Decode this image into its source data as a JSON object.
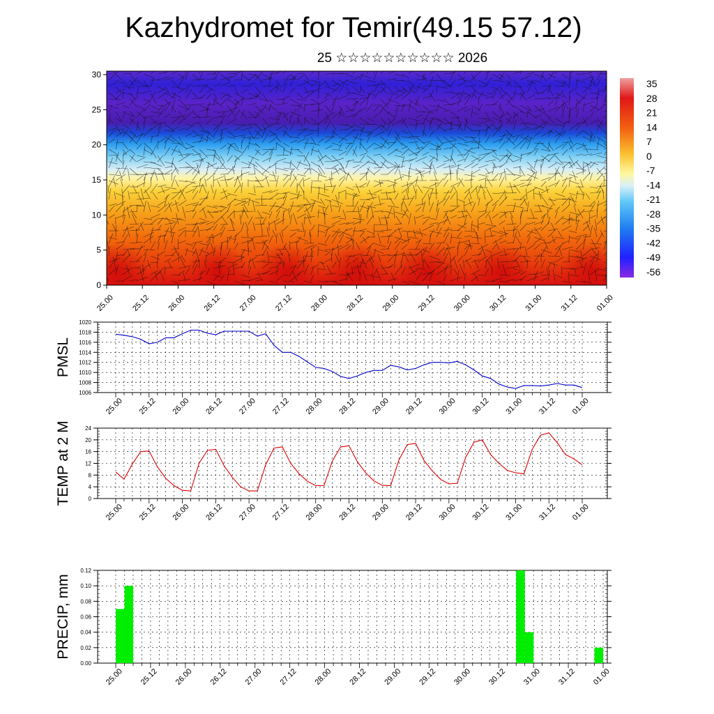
{
  "title": "Kazhydromet for Temir(49.15 57.12)",
  "subtitle": "25 ☆☆☆☆☆☆☆☆☆☆ 2026",
  "colors": {
    "pmsl_line": "#0000cc",
    "temp_line": "#dd0000",
    "precip_bar": "#00ee00",
    "grid": "#000000"
  },
  "time_ticks": [
    "25.00",
    "25.12",
    "26.00",
    "26.12",
    "27.00",
    "27.12",
    "28.00",
    "28.12",
    "29.00",
    "29.12",
    "30.00",
    "30.12",
    "31.00",
    "31.12",
    "01.00"
  ],
  "chart_data": [
    {
      "type": "heatmap",
      "name": "cross-section",
      "x_ticks": [
        "25.00",
        "25.12",
        "26.00",
        "26.12",
        "27.00",
        "27.12",
        "28.00",
        "28.12",
        "29.00",
        "29.12",
        "30.00",
        "30.12",
        "31.00",
        "31.12",
        "01.00"
      ],
      "y_ticks": [
        "0",
        "5",
        "10",
        "15",
        "20",
        "25",
        "30"
      ],
      "ylim": [
        0,
        30.5
      ],
      "colorbar_labels": [
        "35",
        "28",
        "21",
        "14",
        "7",
        "0",
        "-7",
        "-14",
        "-21",
        "-28",
        "-35",
        "-42",
        "-49",
        "-56"
      ],
      "colorbar_range": [
        -63,
        42
      ]
    },
    {
      "type": "line",
      "ylabel": "PMSL",
      "ylim": [
        1006,
        1020
      ],
      "y_ticks": [
        "1006",
        "1008",
        "1010",
        "1012",
        "1014",
        "1016",
        "1018",
        "1020"
      ],
      "x_ticks": [
        "25.00",
        "25.12",
        "26.00",
        "26.12",
        "27.00",
        "27.12",
        "28.00",
        "28.12",
        "29.00",
        "29.12",
        "30.00",
        "30.12",
        "31.00",
        "31.12",
        "01.00"
      ],
      "x_hours": [
        0,
        3,
        6,
        9,
        12,
        15,
        18,
        21,
        24,
        27,
        30,
        33,
        36,
        39,
        42,
        45,
        48,
        51,
        54,
        57,
        60,
        63,
        66,
        69,
        72,
        75,
        78,
        81,
        84,
        87,
        90,
        93,
        96,
        99,
        102,
        105,
        108,
        111,
        114,
        117,
        120,
        123,
        126,
        129,
        132,
        135,
        138,
        141,
        144,
        147,
        150,
        153,
        156,
        159,
        162,
        165,
        168
      ],
      "values": [
        1017.6,
        1017.4,
        1017.1,
        1016.6,
        1015.7,
        1016.0,
        1016.9,
        1016.9,
        1017.7,
        1018.4,
        1018.4,
        1017.8,
        1017.5,
        1018.2,
        1018.2,
        1018.2,
        1018.2,
        1017.2,
        1017.7,
        1015.4,
        1014.0,
        1014.0,
        1013.2,
        1012.1,
        1011.0,
        1010.8,
        1010.2,
        1009.2,
        1008.8,
        1009.3,
        1010.0,
        1010.4,
        1010.4,
        1011.4,
        1011.1,
        1010.5,
        1010.8,
        1011.5,
        1012.0,
        1012.0,
        1011.9,
        1012.2,
        1011.5,
        1010.5,
        1009.3,
        1008.8,
        1007.7,
        1007.1,
        1006.8,
        1007.4,
        1007.4,
        1007.3,
        1007.5,
        1007.8,
        1007.5,
        1007.5,
        1007.0
      ]
    },
    {
      "type": "line",
      "ylabel": "TEMP at 2 M",
      "ylim": [
        0,
        24
      ],
      "y_ticks": [
        "0",
        "4",
        "8",
        "12",
        "16",
        "20",
        "24"
      ],
      "x_ticks": [
        "25.00",
        "25.12",
        "26.00",
        "26.12",
        "27.00",
        "27.12",
        "28.00",
        "28.12",
        "29.00",
        "29.12",
        "30.00",
        "30.12",
        "31.00",
        "31.12",
        "01.00"
      ],
      "x_hours": [
        0,
        3,
        6,
        9,
        12,
        15,
        18,
        21,
        24,
        27,
        30,
        33,
        36,
        39,
        42,
        45,
        48,
        51,
        54,
        57,
        60,
        63,
        66,
        69,
        72,
        75,
        78,
        81,
        84,
        87,
        90,
        93,
        96,
        99,
        102,
        105,
        108,
        111,
        114,
        117,
        120,
        123,
        126,
        129,
        132,
        135,
        138,
        141,
        144,
        147,
        150,
        153,
        156,
        159,
        162,
        165,
        168
      ],
      "values": [
        9.0,
        6.6,
        11.8,
        16.0,
        16.2,
        10.8,
        6.9,
        4.4,
        2.8,
        2.6,
        12.0,
        16.4,
        16.8,
        11.2,
        7.2,
        4.0,
        2.6,
        2.6,
        11.5,
        17.2,
        17.6,
        12.0,
        8.5,
        5.9,
        4.4,
        4.4,
        12.8,
        17.6,
        18.0,
        12.6,
        8.8,
        6.0,
        4.5,
        4.4,
        13.2,
        18.4,
        18.8,
        13.0,
        9.4,
        6.5,
        5.0,
        5.2,
        14.0,
        19.2,
        20.0,
        15.0,
        12.0,
        9.6,
        8.8,
        8.4,
        16.8,
        21.6,
        22.4,
        19.0,
        15.0,
        13.5,
        11.5
      ]
    },
    {
      "type": "bar",
      "ylabel": "PRECIP, mm",
      "ylim": [
        0,
        0.12
      ],
      "y_ticks": [
        "0.00",
        "0.02",
        "0.04",
        "0.06",
        "0.08",
        "0.10",
        "0.12"
      ],
      "x_ticks": [
        "25.00",
        "25.12",
        "26.00",
        "26.12",
        "27.00",
        "27.12",
        "28.00",
        "28.12",
        "29.00",
        "29.12",
        "30.00",
        "30.12",
        "31.00",
        "31.12",
        "01.00"
      ],
      "bars": [
        {
          "x_hours": 0,
          "value": 0.07
        },
        {
          "x_hours": 3,
          "value": 0.1
        },
        {
          "x_hours": 138,
          "value": 0.12
        },
        {
          "x_hours": 141,
          "value": 0.04
        },
        {
          "x_hours": 165,
          "value": 0.02
        }
      ]
    }
  ]
}
